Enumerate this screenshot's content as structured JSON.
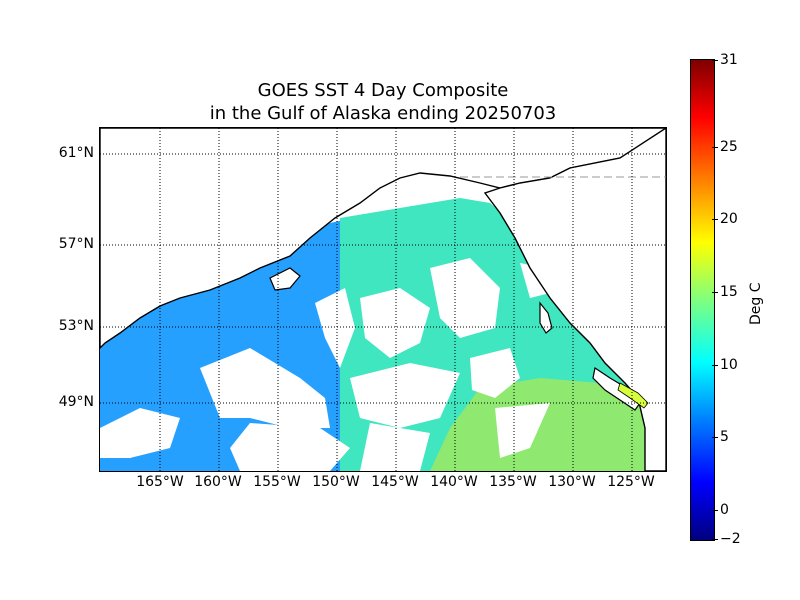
{
  "title": {
    "line1": "GOES SST 4 Day Composite",
    "line2": "in the Gulf of Alaska ending 20250703"
  },
  "map": {
    "lat_labels": [
      "61°N",
      "57°N",
      "53°N",
      "49°N"
    ],
    "lon_labels": [
      "165°W",
      "160°W",
      "155°W",
      "150°W",
      "145°W",
      "140°W",
      "135°W",
      "130°W",
      "125°W"
    ],
    "gridline_style": "dotted black",
    "land_color": "#ffffff",
    "no_data_color": "#ffffff",
    "coastline_color": "#000000"
  },
  "colorbar": {
    "label": "Deg C",
    "min": -2,
    "max": 31,
    "ticks": [
      "31",
      "25",
      "20",
      "15",
      "10",
      "5",
      "0",
      "−2"
    ],
    "colormap": "jet"
  }
}
